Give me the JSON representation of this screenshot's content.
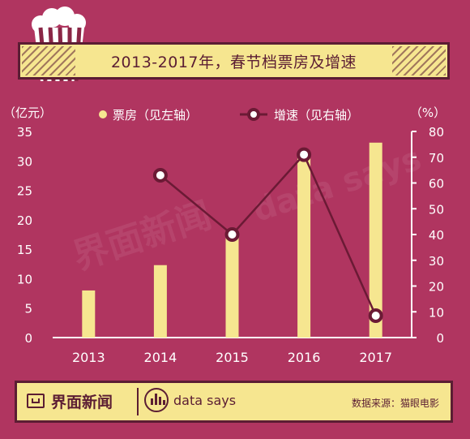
{
  "title": "2013-2017年，春节档票房及增速",
  "footer": {
    "brand": "界面新闻",
    "datasays": "data says",
    "source": "数据来源：猫眼电影"
  },
  "watermark": [
    "界面新闻",
    "data says"
  ],
  "colors": {
    "background": "#b03560",
    "bar": "#f6e690",
    "line": "#6b1a35",
    "marker_fill": "#ffffff",
    "axis": "#ffffff",
    "accent_dark": "#5b1d33"
  },
  "chart_data": {
    "type": "bar",
    "categories": [
      "2013",
      "2014",
      "2015",
      "2016",
      "2017"
    ],
    "series": [
      {
        "name": "票房（见左轴）",
        "type": "bar",
        "axis": "left",
        "values": [
          8,
          12.3,
          17.8,
          30.5,
          33.1
        ]
      },
      {
        "name": "增速（见右轴）",
        "type": "line",
        "axis": "right",
        "values": [
          null,
          63,
          40,
          71,
          8.5
        ]
      }
    ],
    "y_left": {
      "unit": "（亿元）",
      "ylim": [
        0,
        35
      ],
      "ticks": [
        "0",
        "5",
        "10",
        "15",
        "20",
        "25",
        "30",
        "35"
      ]
    },
    "y_right": {
      "unit": "（%）",
      "ylim": [
        0,
        80
      ],
      "ticks": [
        "0",
        "10",
        "20",
        "30",
        "40",
        "50",
        "60",
        "70",
        "80"
      ]
    },
    "grid": false,
    "legend_position": "top"
  }
}
